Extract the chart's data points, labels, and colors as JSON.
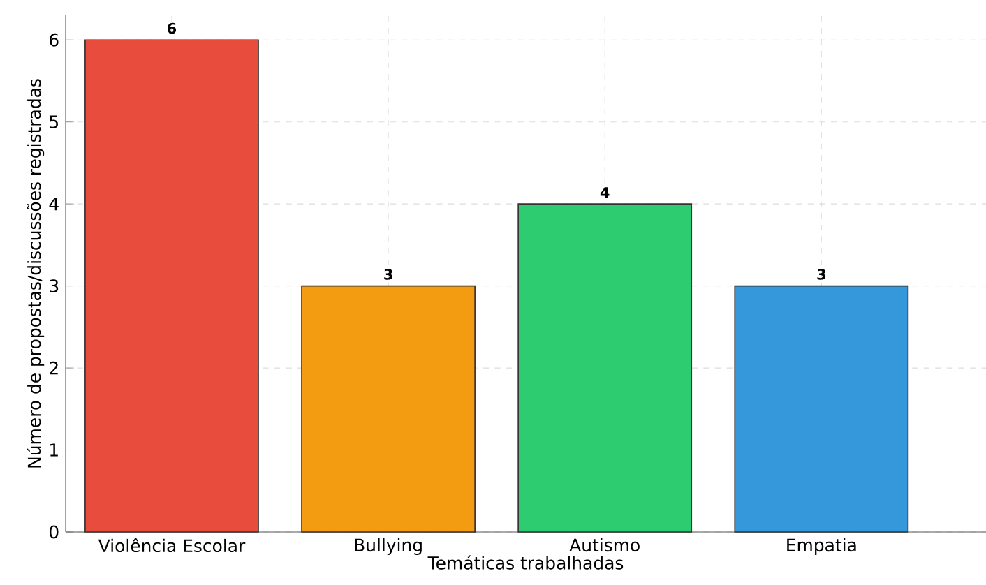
{
  "chart_data": {
    "type": "bar",
    "xlabel": "Temáticas trabalhadas",
    "ylabel": "Número de propostas/discussões registradas",
    "categories": [
      "Violência Escolar",
      "Bullying",
      "Autismo",
      "Empatia"
    ],
    "values": [
      6,
      3,
      4,
      3
    ],
    "colors": [
      "#e74c3c",
      "#f39c12",
      "#2ecc71",
      "#3498db"
    ],
    "ylim": [
      0,
      6.3
    ],
    "yticks": [
      0,
      1,
      2,
      3,
      4,
      5,
      6
    ],
    "grid": true,
    "data_labels": true
  }
}
